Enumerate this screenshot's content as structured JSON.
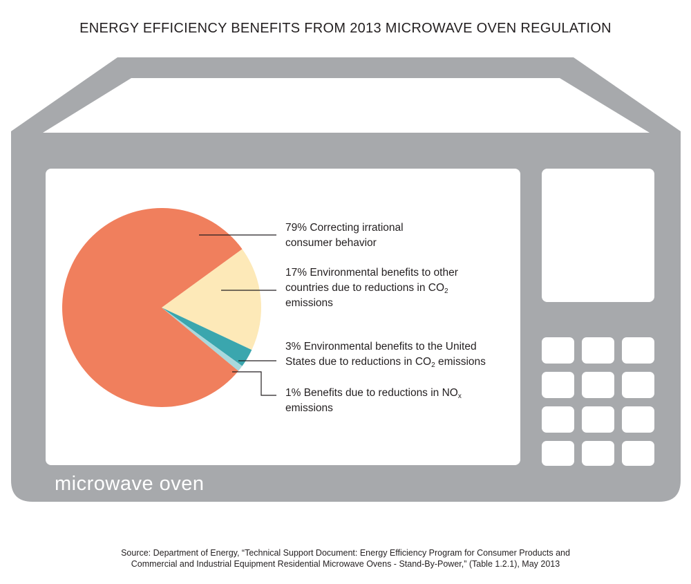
{
  "title": "ENERGY EFFICIENCY BENEFITS FROM 2013 MICROWAVE OVEN REGULATION",
  "oven_label": "microwave oven",
  "legend": [
    {
      "pre": "79% Correcting irrational",
      "line2_pre": "consumer behavior",
      "sub": "",
      "line2_post": ""
    },
    {
      "pre": "17% Environmental benefits to other",
      "line2_pre": "countries due to reductions in CO",
      "sub": "2",
      "line2_post": "",
      "line3": "emissions"
    },
    {
      "pre": "3% Environmental benefits to the United",
      "line2_pre": "States due to reductions in CO",
      "sub": "2",
      "line2_post": " emissions"
    },
    {
      "pre": "1% Benefits due to reductions in NO",
      "sub": "x",
      "line2_pre": "emissions"
    }
  ],
  "source": {
    "line1": "Source: Department of Energy, “Technical Support Document: Energy Efficiency Program for Consumer Products and",
    "line2": "Commercial and Industrial Equipment Residential Microwave Ovens - Stand-By-Power,” (Table 1.2.1), May 2013"
  },
  "chart_data": {
    "type": "pie",
    "title": "ENERGY EFFICIENCY BENEFITS FROM 2013 MICROWAVE OVEN REGULATION",
    "slices": [
      {
        "label": "79% Correcting irrational consumer behavior",
        "value": 79,
        "color": "#f07f5d"
      },
      {
        "label": "17% Environmental benefits to other countries due to reductions in CO2 emissions",
        "value": 17,
        "color": "#fde9b8"
      },
      {
        "label": "3% Environmental benefits to the United States due to reductions in CO2 emissions",
        "value": 3,
        "color": "#3aa6ae"
      },
      {
        "label": "1% Benefits due to reductions in NOx emissions",
        "value": 1,
        "color": "#a9d8dc"
      }
    ]
  },
  "colors": {
    "oven": "#a7a9ac",
    "screen": "#ffffff"
  }
}
